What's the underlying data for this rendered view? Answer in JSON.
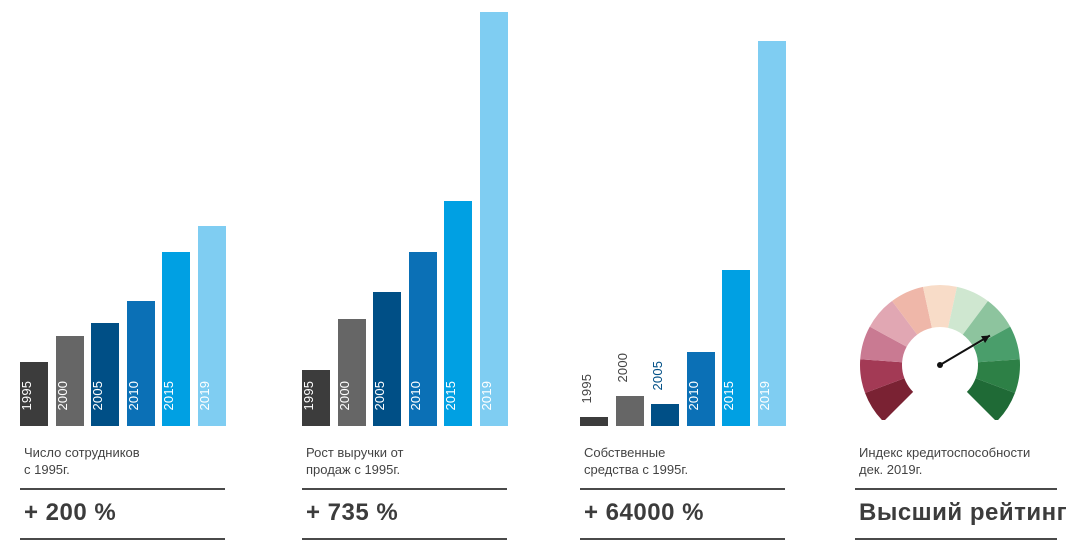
{
  "colors": {
    "y1995": "#3c3c3c",
    "y2000": "#666666",
    "y2005": "#004f86",
    "y2010": "#0b70b6",
    "y2015": "#00a0e3",
    "y2019": "#7fcdf2"
  },
  "chart_data": [
    {
      "type": "bar",
      "categories": [
        "1995",
        "2000",
        "2005",
        "2010",
        "2015",
        "2019"
      ],
      "values": [
        64,
        90,
        103,
        125,
        174,
        200
      ],
      "ylim": [
        0,
        200
      ],
      "caption": "Число сотрудников\nс 1995г.",
      "headline": "+ 200 %"
    },
    {
      "type": "bar",
      "categories": [
        "1995",
        "2000",
        "2005",
        "2010",
        "2015",
        "2019"
      ],
      "values": [
        56,
        107,
        134,
        174,
        225,
        414
      ],
      "ylim": [
        0,
        414
      ],
      "caption": "Рост выручки от\nпродаж с 1995г.",
      "headline": "+ 735 %"
    },
    {
      "type": "bar",
      "categories": [
        "1995",
        "2000",
        "2005",
        "2010",
        "2015",
        "2019"
      ],
      "values": [
        9,
        30,
        22,
        74,
        156,
        385
      ],
      "ylim": [
        0,
        385
      ],
      "caption": "Собственные\nсредства с 1995г.",
      "headline": "+ 64000 %"
    }
  ],
  "gauge": {
    "caption": "Индекс кредитоспособности\nдек. 2019г.",
    "headline": "Высший рейтинг",
    "needle_level": 0.72,
    "segment_colors": [
      "#7a2233",
      "#a33a55",
      "#c97a92",
      "#e1a7b3",
      "#efb7a9",
      "#f8dcc8",
      "#cfe7d0",
      "#8dc49e",
      "#4a9e6b",
      "#2d8046",
      "#1f6a36"
    ]
  }
}
